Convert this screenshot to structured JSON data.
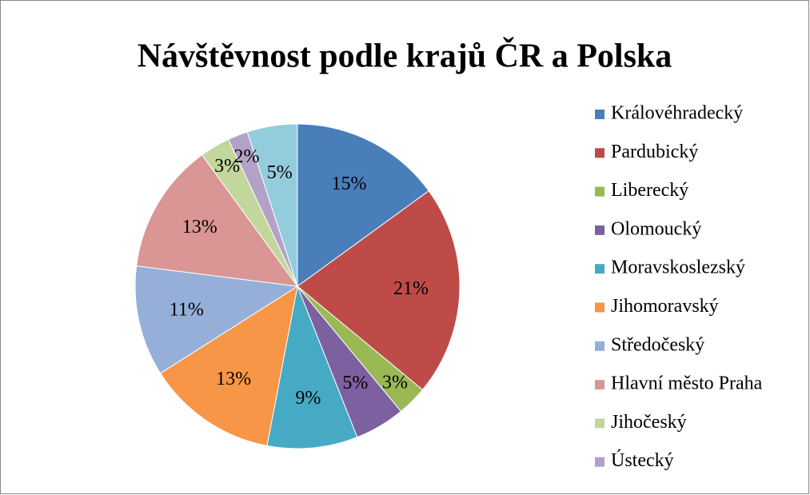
{
  "chart_data": {
    "type": "pie",
    "title": "Návštěvnost podle krajů ČR a Polska",
    "categories": [
      "Královéhradecký",
      "Pardubický",
      "Liberecký",
      "Olomoucký",
      "Moravskoslezský",
      "Jihomoravský",
      "Středočeský",
      "Hlavní město Praha",
      "Jihočeský",
      "Ústecký",
      null
    ],
    "values": [
      15,
      21,
      3,
      5,
      9,
      13,
      11,
      13,
      3,
      2,
      5
    ],
    "value_labels": [
      "15%",
      "21%",
      "3%",
      "5%",
      "9%",
      "13%",
      "11%",
      "13%",
      "3%",
      "2%",
      "5%"
    ],
    "colors": [
      "#4A7EBB",
      "#BE4B48",
      "#98B954",
      "#7D60A0",
      "#46AAC5",
      "#F79646",
      "#95AFD9",
      "#D99694",
      "#C3D69B",
      "#B3A2C7",
      "#93CDDD"
    ],
    "legend": "right"
  }
}
